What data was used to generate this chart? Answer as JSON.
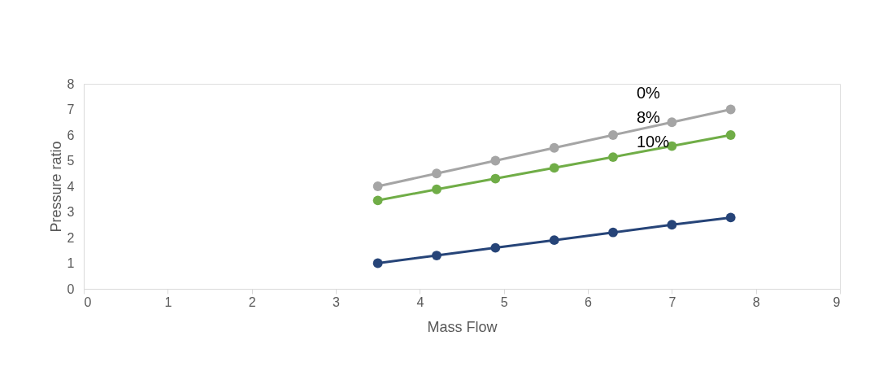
{
  "chart_data": {
    "type": "line",
    "xlabel": "Mass Flow",
    "ylabel": "Pressure ratio",
    "x": [
      3.5,
      4.2,
      4.9,
      5.6,
      6.3,
      7,
      7.7
    ],
    "series": [
      {
        "color": "#a5a5a5",
        "values": [
          4,
          4.5,
          5,
          5.5,
          6,
          6.5,
          7
        ]
      },
      {
        "color": "#70ad47",
        "values": [
          3.45,
          3.88,
          4.3,
          4.72,
          5.14,
          5.57,
          6
        ]
      },
      {
        "color": "#264478",
        "values": [
          1,
          1.3,
          1.6,
          1.9,
          2.2,
          2.5,
          2.78
        ]
      }
    ],
    "xlim": [
      0,
      9
    ],
    "xticks": [
      0,
      1,
      2,
      3,
      4,
      5,
      6,
      7,
      8,
      9
    ],
    "ylim": [
      0,
      8
    ],
    "yticks": [
      0,
      1,
      2,
      3,
      4,
      5,
      6,
      7,
      8
    ],
    "grid": false,
    "legend": false,
    "marker": "circle",
    "line_style": "solid",
    "annotations": [
      "0%",
      "8%",
      "10%"
    ]
  }
}
